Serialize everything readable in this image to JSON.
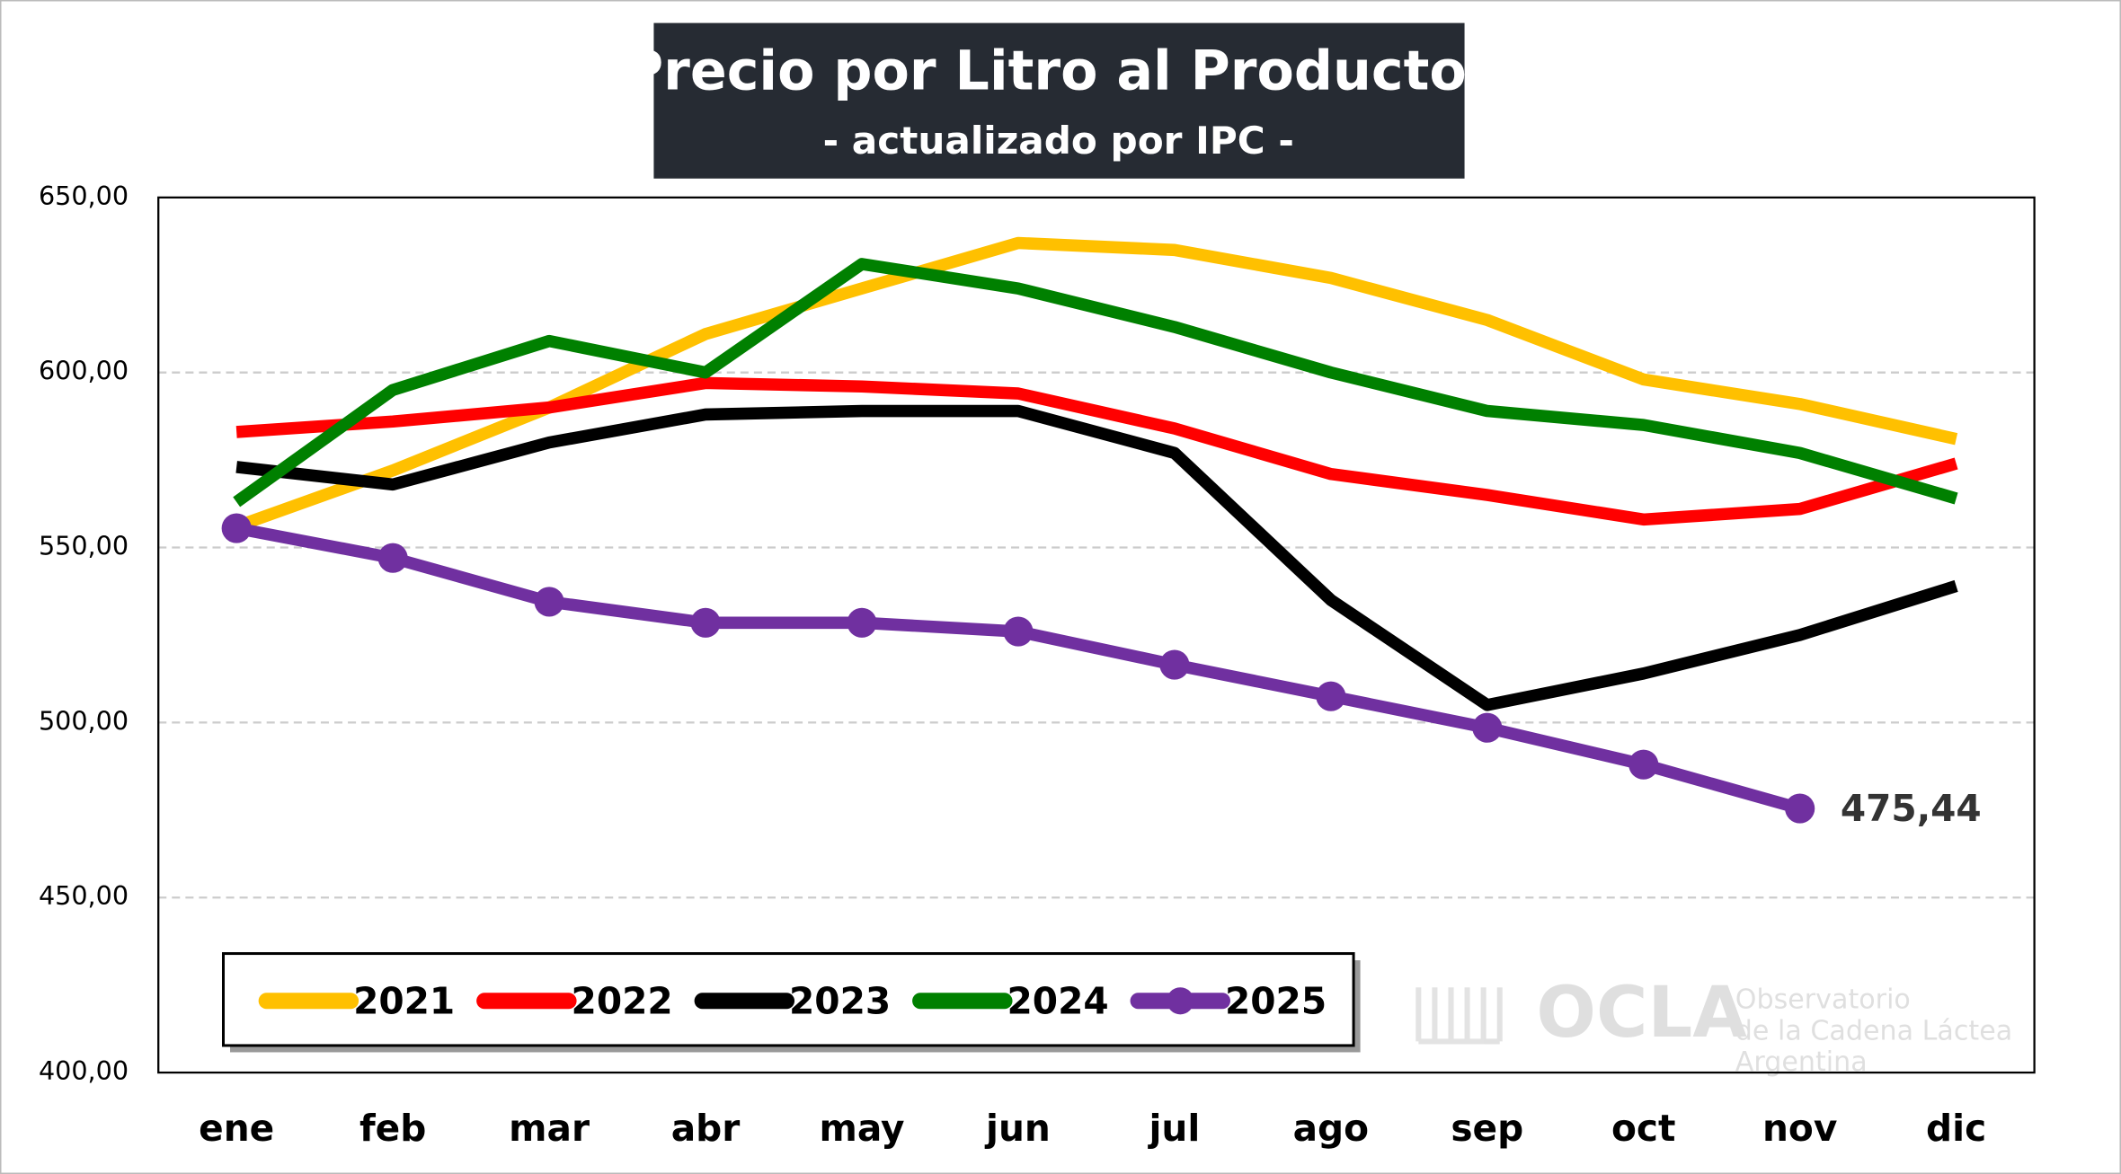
{
  "chart_data": {
    "type": "line",
    "title": "Precio por Litro al Productor",
    "subtitle": "- actualizado por IPC -",
    "categories": [
      "ene",
      "feb",
      "mar",
      "abr",
      "may",
      "jun",
      "jul",
      "ago",
      "sep",
      "oct",
      "nov",
      "dic"
    ],
    "series": [
      {
        "name": "2021",
        "color": "#ffc000",
        "values": [
          556,
          572,
          590,
          611,
          624,
          637,
          635,
          627,
          615,
          598,
          591,
          581
        ]
      },
      {
        "name": "2022",
        "color": "#ff0000",
        "values": [
          583,
          586,
          590,
          597,
          596,
          594,
          584,
          571,
          565,
          558,
          561,
          574
        ]
      },
      {
        "name": "2023",
        "color": "#000000",
        "values": [
          573,
          568,
          580,
          588,
          589,
          589,
          577,
          535,
          505,
          514,
          525,
          539
        ]
      },
      {
        "name": "2024",
        "color": "#008000",
        "values": [
          563,
          595,
          609,
          600,
          631,
          624,
          613,
          600,
          589,
          585,
          577,
          564
        ]
      },
      {
        "name": "2025",
        "color": "#7030a0",
        "markers": true,
        "values": [
          555.5,
          547,
          534.5,
          528.5,
          528.5,
          526,
          516.5,
          507.5,
          498.5,
          488,
          475.44,
          null
        ],
        "value_labels": [
          null,
          null,
          null,
          null,
          null,
          null,
          null,
          null,
          null,
          null,
          "475,44",
          null
        ]
      }
    ],
    "ylim": [
      400,
      650
    ],
    "yticks": [
      {
        "value": 400,
        "label": "400,00"
      },
      {
        "value": 450,
        "label": "450,00"
      },
      {
        "value": 500,
        "label": "500,00"
      },
      {
        "value": 550,
        "label": "550,00"
      },
      {
        "value": 600,
        "label": "600,00"
      },
      {
        "value": 650,
        "label": "650,00"
      }
    ],
    "grid": true,
    "legend": "bottom-left",
    "watermark": {
      "logo": "OCLA",
      "lines": [
        "Observatorio",
        "de la Cadena Láctea",
        "Argentina"
      ]
    }
  }
}
